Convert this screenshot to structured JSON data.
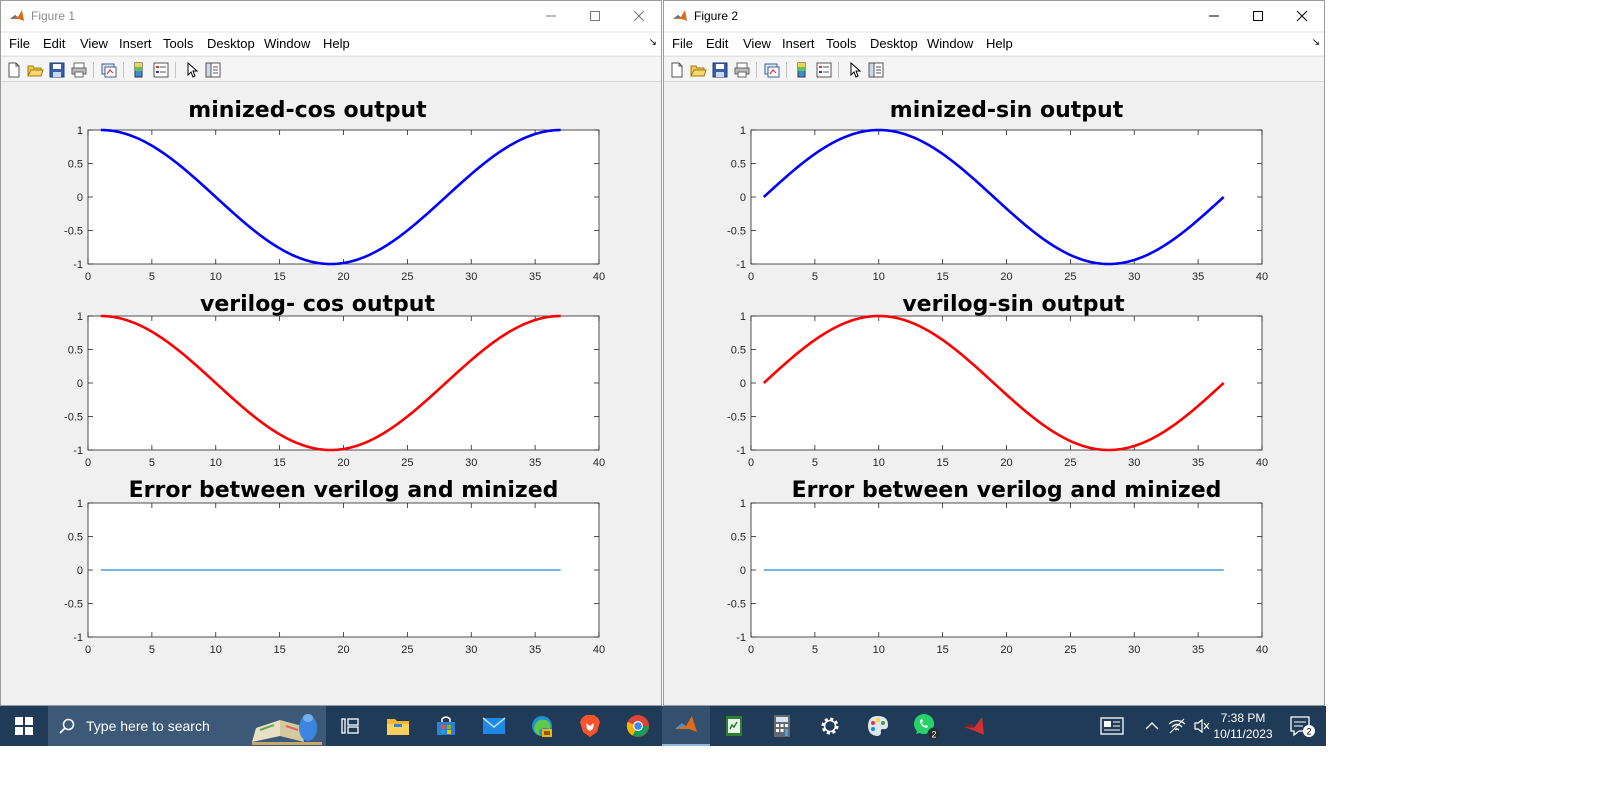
{
  "windows": [
    {
      "title": "Figure 1",
      "menu": [
        "File",
        "Edit",
        "View",
        "Insert",
        "Tools",
        "Desktop",
        "Window",
        "Help"
      ],
      "plots": [
        {
          "title": "minized-cos output",
          "curve": "cos",
          "color": "#0000ff"
        },
        {
          "title": "verilog- cos output",
          "curve": "cos",
          "color": "#ff0000"
        },
        {
          "title": "Error between verilog and minized",
          "curve": "zero",
          "color": "#4f9bd9"
        }
      ]
    },
    {
      "title": "Figure 2",
      "menu": [
        "File",
        "Edit",
        "View",
        "Insert",
        "Tools",
        "Desktop",
        "Window",
        "Help"
      ],
      "plots": [
        {
          "title": "minized-sin output",
          "curve": "sin",
          "color": "#0000ff"
        },
        {
          "title": "verilog-sin output",
          "curve": "sin",
          "color": "#ff0000"
        },
        {
          "title": "Error between verilog and minized",
          "curve": "zero",
          "color": "#4f9bd9"
        }
      ]
    }
  ],
  "chart_data": [
    {
      "type": "line",
      "title": "minized-cos output",
      "x_range": [
        1,
        37
      ],
      "y_formula": "cos(2*pi*(x-1)/36)",
      "xlim": [
        0,
        40
      ],
      "ylim": [
        -1,
        1
      ],
      "xticks": [
        0,
        5,
        10,
        15,
        20,
        25,
        30,
        35,
        40
      ],
      "yticks": [
        1,
        0.5,
        0,
        -0.5,
        -1
      ],
      "color": "#0000ff"
    },
    {
      "type": "line",
      "title": "verilog- cos output",
      "x_range": [
        1,
        37
      ],
      "y_formula": "cos(2*pi*(x-1)/36)",
      "xlim": [
        0,
        40
      ],
      "ylim": [
        -1,
        1
      ],
      "xticks": [
        0,
        5,
        10,
        15,
        20,
        25,
        30,
        35,
        40
      ],
      "yticks": [
        1,
        0.5,
        0,
        -0.5,
        -1
      ],
      "color": "#ff0000"
    },
    {
      "type": "line",
      "title": "Error between verilog and minized",
      "x_range": [
        1,
        37
      ],
      "y_constant": 0,
      "xlim": [
        0,
        40
      ],
      "ylim": [
        -1,
        1
      ],
      "xticks": [
        0,
        5,
        10,
        15,
        20,
        25,
        30,
        35,
        40
      ],
      "yticks": [
        1,
        0.5,
        0,
        -0.5,
        -1
      ],
      "color": "#4f9bd9"
    },
    {
      "type": "line",
      "title": "minized-sin output",
      "x_range": [
        1,
        37
      ],
      "y_formula": "sin(2*pi*(x-1)/36)",
      "xlim": [
        0,
        40
      ],
      "ylim": [
        -1,
        1
      ],
      "xticks": [
        0,
        5,
        10,
        15,
        20,
        25,
        30,
        35,
        40
      ],
      "yticks": [
        1,
        0.5,
        0,
        -0.5,
        -1
      ],
      "color": "#0000ff"
    },
    {
      "type": "line",
      "title": "verilog-sin output",
      "x_range": [
        1,
        37
      ],
      "y_formula": "sin(2*pi*(x-1)/36)",
      "xlim": [
        0,
        40
      ],
      "ylim": [
        -1,
        1
      ],
      "xticks": [
        0,
        5,
        10,
        15,
        20,
        25,
        30,
        35,
        40
      ],
      "yticks": [
        1,
        0.5,
        0,
        -0.5,
        -1
      ],
      "color": "#ff0000"
    },
    {
      "type": "line",
      "title": "Error between verilog and minized",
      "x_range": [
        1,
        37
      ],
      "y_constant": 0,
      "xlim": [
        0,
        40
      ],
      "ylim": [
        -1,
        1
      ],
      "xticks": [
        0,
        5,
        10,
        15,
        20,
        25,
        30,
        35,
        40
      ],
      "yticks": [
        1,
        0.5,
        0,
        -0.5,
        -1
      ],
      "color": "#4f9bd9"
    }
  ],
  "taskbar": {
    "search_placeholder": "Type here to search",
    "clock_time": "7:38 PM",
    "clock_date": "10/11/2023",
    "whatsapp_badge": "2",
    "notification_badge": "2",
    "apps": [
      "task-view",
      "file-explorer",
      "microsoft-store",
      "mail",
      "edge",
      "brave",
      "chrome",
      "matlab",
      "green-app",
      "calculator",
      "settings",
      "paint",
      "whatsapp",
      "red-app"
    ]
  },
  "colors": {
    "taskbar": "#1f3b57",
    "window_bg": "#f0f0f0",
    "accent": "#0078d7"
  }
}
